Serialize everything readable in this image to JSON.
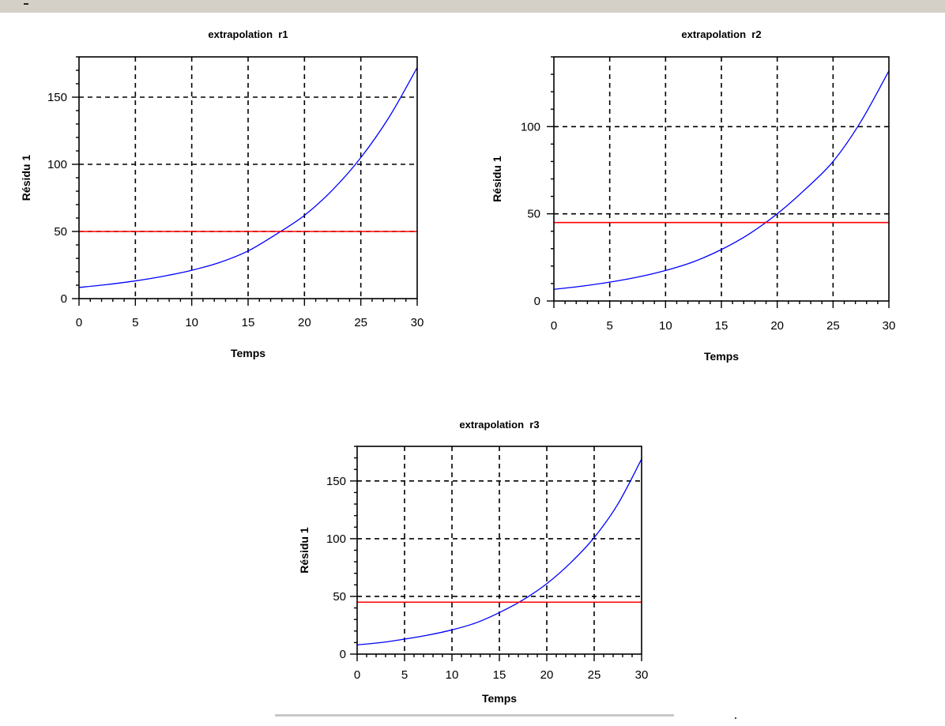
{
  "chart_data": [
    {
      "type": "line",
      "title": "extrapolation  r1",
      "xlabel": "Temps",
      "ylabel": "Résidu 1",
      "xlim": [
        0,
        30
      ],
      "ylim": [
        0,
        180
      ],
      "xticks": [
        0,
        5,
        10,
        15,
        20,
        25,
        30
      ],
      "yticks": [
        0,
        50,
        100,
        150
      ],
      "grid": true,
      "series": [
        {
          "color": "#0000ff",
          "x": [
            0,
            2.5,
            5,
            7.5,
            10,
            12.5,
            15,
            17.5,
            20,
            22.5,
            25,
            27.5,
            30
          ],
          "y": [
            8.3,
            10.5,
            13.2,
            16.7,
            21.1,
            27,
            35.5,
            48,
            62,
            81,
            105,
            135,
            172
          ]
        },
        {
          "color": "#ff0000",
          "x": [
            0,
            30
          ],
          "y": [
            50,
            50
          ]
        }
      ]
    },
    {
      "type": "line",
      "title": "extrapolation  r2",
      "xlabel": "Temps",
      "ylabel": "Résidu 1",
      "xlim": [
        0,
        30
      ],
      "ylim": [
        0,
        140
      ],
      "xticks": [
        0,
        5,
        10,
        15,
        20,
        25,
        30
      ],
      "yticks": [
        0,
        50,
        100
      ],
      "grid": true,
      "series": [
        {
          "color": "#0000ff",
          "x": [
            0,
            2.5,
            5,
            7.5,
            10,
            12.5,
            15,
            17.5,
            20,
            22.5,
            25,
            27.5,
            30
          ],
          "y": [
            6.7,
            8.5,
            10.8,
            13.7,
            17.5,
            22.5,
            29.5,
            38.5,
            50,
            64,
            80,
            103,
            132
          ]
        },
        {
          "color": "#ff0000",
          "x": [
            0,
            30
          ],
          "y": [
            45,
            45
          ]
        }
      ]
    },
    {
      "type": "line",
      "title": "extrapolation  r3",
      "xlabel": "Temps",
      "ylabel": "Résidu 1",
      "xlim": [
        0,
        30
      ],
      "ylim": [
        0,
        180
      ],
      "xticks": [
        0,
        5,
        10,
        15,
        20,
        25,
        30
      ],
      "yticks": [
        0,
        50,
        100,
        150
      ],
      "grid": true,
      "series": [
        {
          "color": "#0000ff",
          "x": [
            0,
            2.5,
            5,
            7.5,
            10,
            12.5,
            15,
            17.5,
            20,
            22.5,
            25,
            27.5,
            30
          ],
          "y": [
            8,
            10,
            13,
            16.5,
            21,
            27,
            36,
            47,
            61,
            79,
            101,
            130,
            169
          ]
        },
        {
          "color": "#ff0000",
          "x": [
            0,
            30
          ],
          "y": [
            45,
            45
          ]
        }
      ]
    }
  ]
}
